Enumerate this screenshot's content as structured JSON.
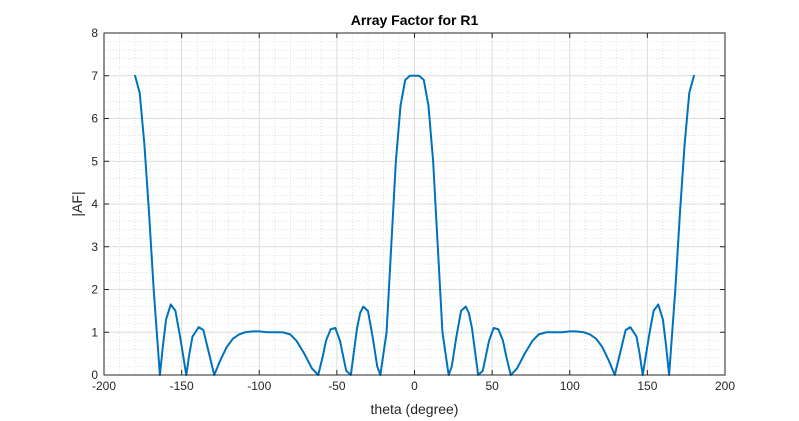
{
  "chart_data": {
    "type": "line",
    "title": "Array Factor for R1",
    "xlabel": "theta (degree)",
    "ylabel": "|AF|",
    "xlim": [
      -200,
      200
    ],
    "ylim": [
      0,
      8
    ],
    "xticks": [
      -200,
      -150,
      -100,
      -50,
      0,
      50,
      100,
      150,
      200
    ],
    "xtick_labels": [
      "-200",
      "-150",
      "-100",
      "-50",
      "0",
      "50",
      "100",
      "150",
      "200"
    ],
    "yticks": [
      0,
      1,
      2,
      3,
      4,
      5,
      6,
      7,
      8
    ],
    "ytick_labels": [
      "0",
      "1",
      "2",
      "3",
      "4",
      "5",
      "6",
      "7",
      "8"
    ],
    "grid": true,
    "minor_grid": true,
    "series_color": "#0072BD",
    "series": [
      {
        "x": [
          -180,
          -177,
          -174,
          -171,
          -168,
          -164,
          -162,
          -160,
          -157,
          -154,
          -151,
          -147,
          -145,
          -143,
          -139,
          -136,
          -133,
          -129,
          -125,
          -121,
          -117,
          -113,
          -109,
          -104,
          -100,
          -95,
          -90,
          -85,
          -80,
          -76,
          -71,
          -66,
          -62,
          -59,
          -57,
          -54,
          -51,
          -48,
          -44,
          -41,
          -39,
          -37,
          -35,
          -33,
          -30,
          -27,
          -24,
          -22,
          -20,
          -18,
          -15,
          -12,
          -9,
          -6,
          -3,
          0,
          3,
          6,
          9,
          12,
          15,
          18,
          20,
          22,
          24,
          27,
          30,
          33,
          35,
          37,
          39,
          41,
          44,
          48,
          51,
          54,
          57,
          59,
          62,
          66,
          71,
          76,
          80,
          85,
          90,
          95,
          100,
          104,
          109,
          113,
          117,
          121,
          125,
          129,
          133,
          136,
          139,
          143,
          145,
          147,
          151,
          154,
          157,
          160,
          162,
          164,
          168,
          171,
          174,
          177,
          180
        ],
        "y": [
          7.0,
          6.6,
          5.4,
          3.8,
          2.0,
          0.0,
          0.7,
          1.3,
          1.65,
          1.5,
          0.9,
          0.0,
          0.5,
          0.9,
          1.12,
          1.05,
          0.6,
          0.0,
          0.35,
          0.65,
          0.85,
          0.95,
          1.0,
          1.02,
          1.02,
          1.0,
          1.0,
          1.0,
          0.95,
          0.8,
          0.5,
          0.15,
          0.0,
          0.45,
          0.8,
          1.07,
          1.1,
          0.8,
          0.1,
          0.0,
          0.55,
          1.1,
          1.45,
          1.6,
          1.5,
          0.9,
          0.2,
          0.0,
          0.5,
          1.0,
          3.0,
          5.0,
          6.3,
          6.9,
          7.0,
          7.0,
          7.0,
          6.9,
          6.3,
          5.0,
          3.0,
          1.0,
          0.5,
          0.0,
          0.2,
          0.9,
          1.5,
          1.6,
          1.45,
          1.1,
          0.55,
          0.0,
          0.1,
          0.8,
          1.1,
          1.07,
          0.8,
          0.45,
          0.0,
          0.15,
          0.5,
          0.8,
          0.95,
          1.0,
          1.0,
          1.0,
          1.02,
          1.02,
          1.0,
          0.95,
          0.85,
          0.65,
          0.35,
          0.0,
          0.6,
          1.05,
          1.12,
          0.9,
          0.5,
          0.0,
          0.9,
          1.5,
          1.65,
          1.3,
          0.7,
          0.0,
          2.0,
          3.8,
          5.4,
          6.6,
          7.0
        ]
      }
    ]
  }
}
